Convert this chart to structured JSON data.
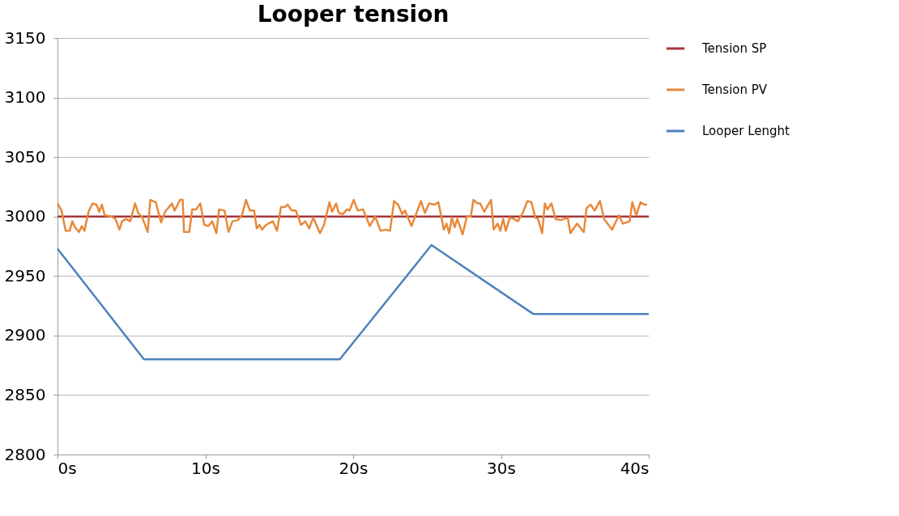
{
  "chart_data": {
    "type": "line",
    "title": "Looper tension",
    "xlim": [
      0,
      40
    ],
    "xticks": [
      {
        "value": 0,
        "label": "0s"
      },
      {
        "value": 10,
        "label": "10s"
      },
      {
        "value": 20,
        "label": "20s"
      },
      {
        "value": 30,
        "label": "30s"
      },
      {
        "value": 40,
        "label": "40s"
      }
    ],
    "ylim": [
      2800,
      3150
    ],
    "yticks": [
      2800,
      2850,
      2900,
      2950,
      3000,
      3050,
      3100,
      3150
    ],
    "grid": "y",
    "legend": "right",
    "marker": "none",
    "line_style": "solid",
    "series": [
      {
        "name": "Tension  SP",
        "color": "#a5373a",
        "x": [
          0,
          40
        ],
        "values": [
          3000,
          3000
        ]
      },
      {
        "name": "Tension PV",
        "color": "#e8893a",
        "x": [
          0,
          0.27,
          0.55,
          0.82,
          1.0,
          1.18,
          1.46,
          1.64,
          1.82,
          2.1,
          2.37,
          2.64,
          2.82,
          3.0,
          3.19,
          3.64,
          3.92,
          4.19,
          4.37,
          4.64,
          4.92,
          5.25,
          5.46,
          5.74,
          6.1,
          6.28,
          6.65,
          7.01,
          7.28,
          7.74,
          7.92,
          8.29,
          8.47,
          8.56,
          8.92,
          9.11,
          9.38,
          9.66,
          9.93,
          10.2,
          10.47,
          10.75,
          10.93,
          11.3,
          11.57,
          11.84,
          12.2,
          12.48,
          12.75,
          13.02,
          13.3,
          13.48,
          13.66,
          13.84,
          14.11,
          14.57,
          14.85,
          15.12,
          15.39,
          15.57,
          15.85,
          16.12,
          16.48,
          16.76,
          17.03,
          17.3,
          17.76,
          18.03,
          18.4,
          18.58,
          18.85,
          19.04,
          19.31,
          19.58,
          19.76,
          20.04,
          20.31,
          20.67,
          21.13,
          21.49,
          21.86,
          22.22,
          22.5,
          22.77,
          23.04,
          23.32,
          23.5,
          23.95,
          24.23,
          24.59,
          24.86,
          25.14,
          25.5,
          25.77,
          26.14,
          26.32,
          26.5,
          26.68,
          26.87,
          27.05,
          27.41,
          27.69,
          27.96,
          28.14,
          28.42,
          28.6,
          28.87,
          29.33,
          29.51,
          29.78,
          29.96,
          30.15,
          30.33,
          30.6,
          30.87,
          31.15,
          31.51,
          31.79,
          32.06,
          32.33,
          32.51,
          32.79,
          32.97,
          33.15,
          33.42,
          33.7,
          34.06,
          34.52,
          34.7,
          35.15,
          35.61,
          35.79,
          36.07,
          36.34,
          36.7,
          36.98,
          37.52,
          37.98,
          38.25,
          38.71,
          38.89,
          39.16,
          39.44,
          39.71,
          39.89
        ],
        "values": [
          3011,
          3005,
          2988,
          2988,
          2996,
          2991,
          2987,
          2992,
          2988,
          3004,
          3011,
          3010,
          3004,
          3010,
          3001,
          3000,
          2998,
          2989,
          2996,
          2998,
          2996,
          3011,
          3003,
          2999,
          2987,
          3014,
          3012,
          2995,
          3004,
          3011,
          3005,
          3014,
          3014,
          2987,
          2987,
          3006,
          3006,
          3011,
          2993,
          2992,
          2996,
          2986,
          3006,
          3005,
          2987,
          2996,
          2997,
          3001,
          3014,
          3005,
          3005,
          2990,
          2993,
          2989,
          2993,
          2996,
          2988,
          3008,
          3008,
          3010,
          3005,
          3005,
          2993,
          2996,
          2990,
          2999,
          2986,
          2993,
          3012,
          3004,
          3011,
          3003,
          3002,
          3006,
          3005,
          3014,
          3005,
          3006,
          2992,
          3000,
          2988,
          2989,
          2988,
          3013,
          3010,
          3002,
          3005,
          2992,
          3001,
          3013,
          3003,
          3011,
          3010,
          3012,
          2989,
          2994,
          2986,
          2999,
          2991,
          2998,
          2985,
          3000,
          3000,
          3014,
          3011,
          3011,
          3004,
          3014,
          2989,
          2994,
          2988,
          2998,
          2988,
          2999,
          2998,
          2996,
          3004,
          3013,
          3012,
          2999,
          2998,
          2986,
          3011,
          3006,
          3011,
          2998,
          2997,
          2999,
          2986,
          2994,
          2987,
          3007,
          3010,
          3005,
          3013,
          2998,
          2989,
          3001,
          2994,
          2996,
          3012,
          3001,
          3012,
          3010,
          3010
        ]
      },
      {
        "name": "Looper Lenght",
        "color": "#4f81bd",
        "x": [
          0,
          5.85,
          19.1,
          25.3,
          32.2,
          40
        ],
        "values": [
          2973,
          2880,
          2880,
          2976,
          2918,
          2918
        ]
      }
    ]
  }
}
